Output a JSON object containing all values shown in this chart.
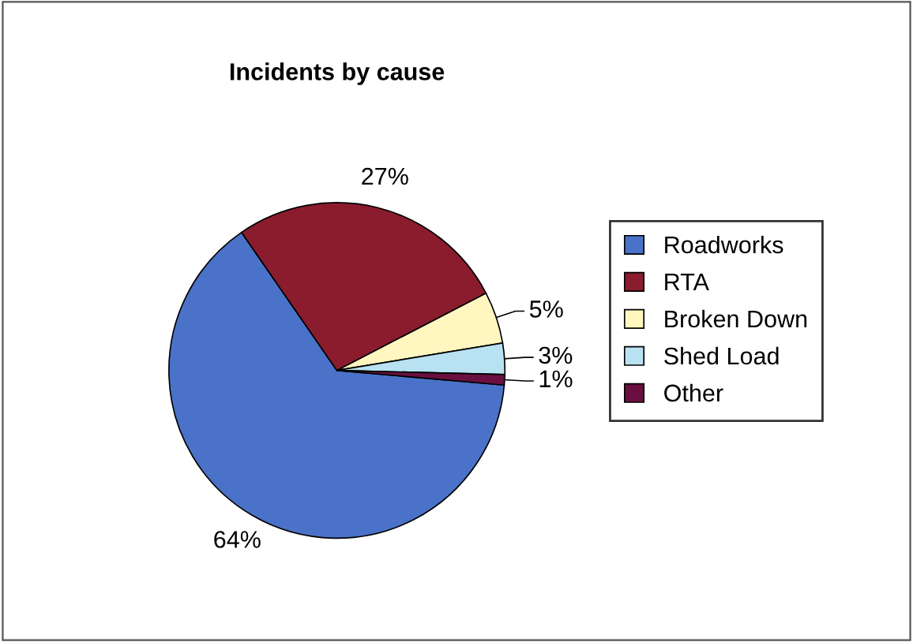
{
  "chart_data": {
    "type": "pie",
    "title": "Incidents by cause",
    "categories": [
      "Roadworks",
      "RTA",
      "Broken Down",
      "Shed Load",
      "Other"
    ],
    "values": [
      64,
      27,
      5,
      3,
      1
    ],
    "colors": [
      "#4a72c8",
      "#8b1c2e",
      "#fff6c0",
      "#b8e2f2",
      "#6a1040"
    ],
    "value_labels": [
      "64%",
      "27%",
      "5%",
      "3%",
      "1%"
    ],
    "legend": "right"
  }
}
